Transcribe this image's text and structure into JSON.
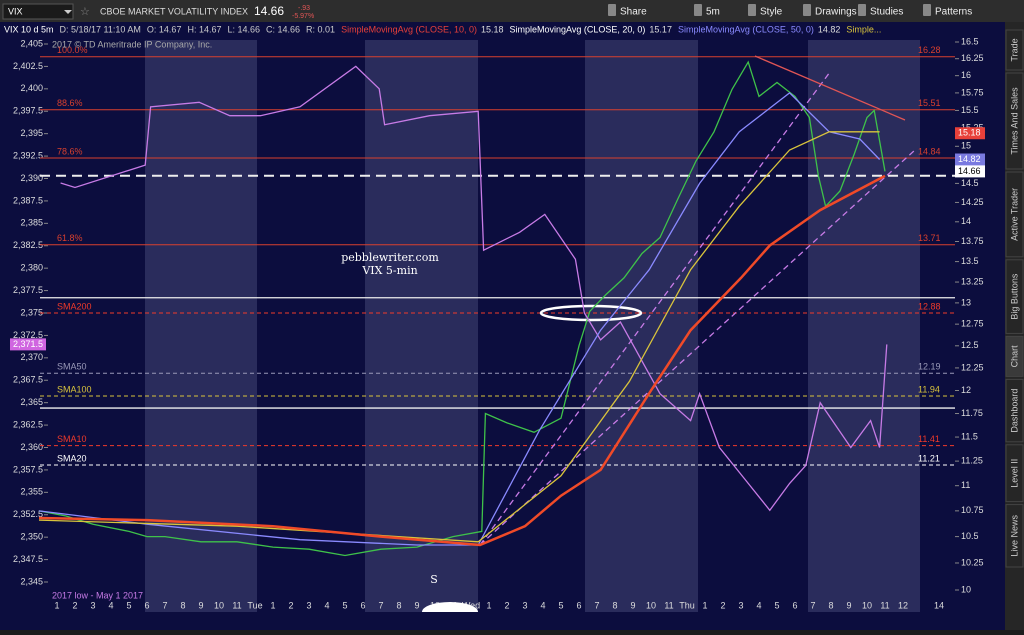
{
  "toolbar": {
    "symbol": "VIX",
    "description": "CBOE MARKET VOLATILITY INDEX",
    "last": 14.66,
    "change": "-.93",
    "change_pct": "-5.97%",
    "buttons": [
      "Share",
      "5m",
      "Style",
      "Drawings",
      "Studies",
      "Patterns"
    ]
  },
  "side_tabs": [
    "Trade",
    "Times And Sales",
    "Active Trader",
    "Big Buttons",
    "Chart",
    "Dashboard",
    "Level II",
    "Live News"
  ],
  "chart": {
    "header": [
      "VIX 10 d 5m",
      "D: 5/18/17 11:10 AM",
      "O: 14.67",
      "H: 14.67",
      "L: 14.66",
      "C: 14.66",
      "R: 0.01"
    ],
    "studies": [
      {
        "name": "SimpleMovingAvg (CLOSE, 10, 0)",
        "value": 15.18,
        "color": "#e8403a"
      },
      {
        "name": "SimpleMovingAvg (CLOSE, 20, 0)",
        "value": 15.17,
        "color": "#ffffff"
      },
      {
        "name": "SimpleMovingAvg (CLOSE, 50, 0)",
        "value": 14.82,
        "color": "#8a8aff"
      },
      {
        "name": "Simple...",
        "color": "#d9c43c"
      }
    ],
    "copyright": "2017 © TD Ameritrade IP Company, Inc.",
    "annotations": [
      "pebblewriter.com",
      "VIX 5-min",
      "S",
      "2017 low - May 1 2017"
    ],
    "xticks": [
      "1",
      "2",
      "3",
      "4",
      "5",
      "6",
      "7",
      "8",
      "9",
      "10",
      "11",
      "Tue",
      "1",
      "2",
      "3",
      "4",
      "5",
      "6",
      "7",
      "8",
      "9",
      "10",
      "11",
      "Wed",
      "1",
      "2",
      "3",
      "4",
      "5",
      "6",
      "7",
      "8",
      "9",
      "10",
      "11",
      "Thu",
      "1",
      "2",
      "3",
      "4",
      "5",
      "6",
      "7",
      "8",
      "9",
      "10",
      "11",
      "12",
      null,
      "14"
    ],
    "ylim": [
      2345,
      2405
    ],
    "yticks": [
      {
        "value": 2345,
        "label": "2,345"
      },
      {
        "value": 2347.5,
        "label": "2,347.5"
      },
      {
        "value": 2350,
        "label": "2,350"
      },
      {
        "value": 2352.5,
        "label": "2,352.5"
      },
      {
        "value": 2355,
        "label": "2,355"
      },
      {
        "value": 2357.5,
        "label": "2,357.5"
      },
      {
        "value": 2360,
        "label": "2,360"
      },
      {
        "value": 2362.5,
        "label": "2,362.5"
      },
      {
        "value": 2365,
        "label": "2,365"
      },
      {
        "value": 2367.5,
        "label": "2,367.5"
      },
      {
        "value": 2370,
        "label": "2,370"
      },
      {
        "value": 2372.5,
        "label": "2,372.5"
      },
      {
        "value": 2375,
        "label": "2,375"
      },
      {
        "value": 2377.5,
        "label": "2,377.5"
      },
      {
        "value": 2380,
        "label": "2,380"
      },
      {
        "value": 2382.5,
        "label": "2,382.5"
      },
      {
        "value": 2385,
        "label": "2,385"
      },
      {
        "value": 2387.5,
        "label": "2,387.5"
      },
      {
        "value": 2390,
        "label": "2,390"
      },
      {
        "value": 2392.5,
        "label": "2,392.5"
      },
      {
        "value": 2395,
        "label": "2,395"
      },
      {
        "value": 2397.5,
        "label": "2,397.5"
      },
      {
        "value": 2400,
        "label": "2,400"
      },
      {
        "value": 2402.5,
        "label": "2,402.5"
      },
      {
        "value": 2405,
        "label": "2,405"
      }
    ],
    "y2lim": [
      10,
      16.5
    ],
    "y2log": true,
    "y2ticks": [
      10,
      10.25,
      10.5,
      10.75,
      11,
      11.25,
      11.5,
      11.75,
      12,
      12.25,
      12.5,
      12.75,
      13,
      13.25,
      13.5,
      13.75,
      14,
      14.25,
      14.5,
      14.75,
      15,
      15.25,
      15.5,
      15.75,
      16,
      16.25,
      16.5
    ],
    "series": [
      {
        "axis": "y2",
        "color": "#3fc24a",
        "x": [
          -1,
          0.5,
          2,
          4,
          5,
          6,
          8,
          10,
          12,
          14,
          16,
          18,
          20,
          22,
          23.6,
          23.8,
          25,
          26.5,
          28,
          29,
          29.6,
          30.5,
          31.5,
          32.5,
          33.5,
          34.5,
          35.5,
          36.5,
          37.5,
          38.4,
          39,
          40,
          41,
          41.8,
          42.3,
          42.7,
          43.5,
          44.3,
          45,
          45.4,
          46
        ],
        "values": [
          10.75,
          10.7,
          10.62,
          10.55,
          10.5,
          10.5,
          10.45,
          10.45,
          10.4,
          10.38,
          10.32,
          10.38,
          10.4,
          10.5,
          10.55,
          11.75,
          11.65,
          11.55,
          11.7,
          12.5,
          12.9,
          13.1,
          13.3,
          13.6,
          13.8,
          14.3,
          14.8,
          15.2,
          15.8,
          16.2,
          15.7,
          15.9,
          15.7,
          15.4,
          14.6,
          14.2,
          14.4,
          14.9,
          15.4,
          15.5,
          14.66
        ]
      },
      {
        "axis": "y",
        "color": "#c77be6",
        "x": [
          0.2,
          1,
          4.9,
          5.2,
          7.9,
          9.6,
          11.3,
          13.5,
          16.6,
          17.9,
          18.2,
          20.7,
          23.4,
          23.7,
          25.7,
          27.1,
          28.8,
          29.3,
          30.2,
          31.3,
          32.4,
          33.5,
          35.2,
          35.7,
          36.8,
          38.2,
          39.6,
          40.7,
          41.6,
          42.4,
          44.1,
          45.2,
          45.7,
          46.1
        ],
        "values": [
          2389.5,
          2389,
          2391.5,
          2398,
          2398.5,
          2397,
          2397,
          2398,
          2402.5,
          2400,
          2396,
          2397,
          2397.5,
          2382,
          2384,
          2386,
          2381,
          2375,
          2372,
          2374,
          2370,
          2366,
          2363,
          2366,
          2360,
          2356.5,
          2353,
          2356,
          2358,
          2365,
          2360,
          2363,
          2360,
          2371.5
        ]
      },
      {
        "axis": "y2",
        "color": "#8a8aff",
        "x": [
          -1,
          5,
          13.5,
          20,
          23.4,
          26.8,
          30.2,
          32.9,
          35.7,
          37.9,
          40.7,
          42.9,
          44.6,
          45.7
        ],
        "values": [
          10.75,
          10.62,
          10.47,
          10.42,
          10.42,
          11.57,
          12.68,
          13.4,
          14.5,
          15.2,
          15.75,
          15.2,
          15.1,
          14.82
        ]
      },
      {
        "axis": "y2",
        "color": "#d9c43c",
        "x": [
          -1,
          10,
          23.4,
          28,
          31.8,
          35.2,
          37.9,
          40.7,
          42.9,
          45.7
        ],
        "values": [
          10.66,
          10.6,
          10.45,
          11.1,
          12.1,
          13.4,
          14.2,
          14.95,
          15.2,
          15.2
        ]
      },
      {
        "axis": "y2",
        "color": "#f04a28",
        "x": [
          -1,
          5,
          12,
          18,
          23.5,
          26,
          28,
          30.2,
          33,
          35.2,
          38,
          39.6,
          42.4,
          46
        ],
        "values": [
          10.68,
          10.66,
          10.6,
          10.5,
          10.42,
          10.6,
          10.9,
          11.16,
          12.0,
          12.68,
          13.3,
          13.7,
          14.15,
          14.6
        ]
      }
    ],
    "levels": [
      {
        "label": "100.0%",
        "value": 16.28,
        "color": "#d8402e",
        "dash": false
      },
      {
        "label": "88.6%",
        "value": 15.51,
        "color": "#d8402e",
        "dash": false
      },
      {
        "label": "78.6%",
        "value": 14.84,
        "color": "#d8402e",
        "dash": false
      },
      {
        "label": "61.8%",
        "value": 13.71,
        "color": "#d8402e",
        "dash": false
      },
      {
        "label": "SMA200",
        "value": 12.88,
        "color": "#f03a2a",
        "dash": true
      },
      {
        "label": "SMA50",
        "value": 12.19,
        "color": "#9a9ab8",
        "dash": true
      },
      {
        "label": "SMA100",
        "value": 11.94,
        "color": "#d9c43c",
        "dash": true
      },
      {
        "label": "SMA10",
        "value": 11.41,
        "color": "#f03a2a",
        "dash": true
      },
      {
        "label": "SMA20",
        "value": 11.21,
        "color": "#ffffff",
        "dash": true
      }
    ],
    "guides": [
      {
        "value": 2390.3,
        "dash": true
      },
      {
        "value": 2376.7,
        "dash": false
      },
      {
        "value": 2364.4,
        "dash": false
      }
    ],
    "left_tag": {
      "value": 2371.5,
      "label": "2,371.5"
    }
  }
}
